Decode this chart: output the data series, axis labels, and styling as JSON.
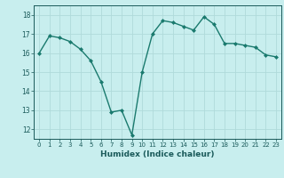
{
  "x": [
    0,
    1,
    2,
    3,
    4,
    5,
    6,
    7,
    8,
    9,
    10,
    11,
    12,
    13,
    14,
    15,
    16,
    17,
    18,
    19,
    20,
    21,
    22,
    23
  ],
  "y": [
    16.0,
    16.9,
    16.8,
    16.6,
    16.2,
    15.6,
    14.5,
    12.9,
    13.0,
    11.7,
    15.0,
    17.0,
    17.7,
    17.6,
    17.4,
    17.2,
    17.9,
    17.5,
    16.5,
    16.5,
    16.4,
    16.3,
    15.9,
    15.8
  ],
  "xlabel": "Humidex (Indice chaleur)",
  "xlim": [
    -0.5,
    23.5
  ],
  "ylim": [
    11.5,
    18.5
  ],
  "yticks": [
    12,
    13,
    14,
    15,
    16,
    17,
    18
  ],
  "xticks": [
    0,
    1,
    2,
    3,
    4,
    5,
    6,
    7,
    8,
    9,
    10,
    11,
    12,
    13,
    14,
    15,
    16,
    17,
    18,
    19,
    20,
    21,
    22,
    23
  ],
  "line_color": "#1a7a6e",
  "marker_color": "#1a7a6e",
  "bg_color": "#c8eeee",
  "grid_color": "#b0dada",
  "label_color": "#1a5a5a",
  "tick_color": "#1a5a5a"
}
